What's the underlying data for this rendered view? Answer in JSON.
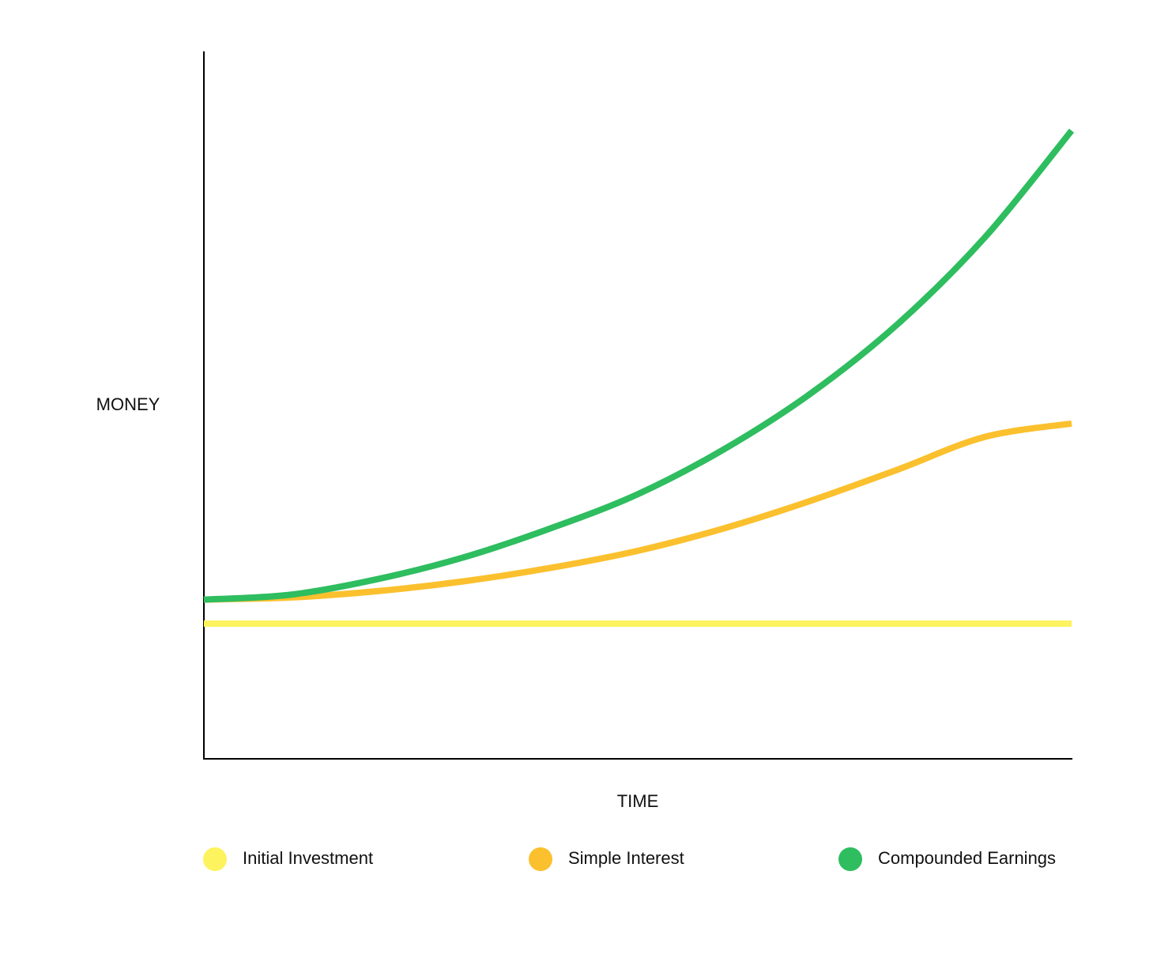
{
  "chart_data": {
    "type": "line",
    "x_label": "TIME",
    "y_label": "MONEY",
    "x": [
      0,
      1,
      2,
      3,
      4,
      5,
      6,
      7,
      8,
      9,
      10
    ],
    "xlim": [
      0,
      10
    ],
    "ylim": [
      0,
      100
    ],
    "series": [
      {
        "name": "Initial Investment",
        "color": "#fdf35e",
        "values": [
          19.1,
          19.1,
          19.1,
          19.1,
          19.1,
          19.1,
          19.1,
          19.1,
          19.1,
          19.1,
          19.1
        ]
      },
      {
        "name": "Simple Interest",
        "color": "#fbc02d",
        "values": [
          22.5,
          22.8,
          23.7,
          25.1,
          27.0,
          29.4,
          32.6,
          36.5,
          40.9,
          45.5,
          47.4
        ]
      },
      {
        "name": "Compounded Earnings",
        "color": "#2ebd5f",
        "values": [
          22.5,
          23.2,
          25.4,
          28.5,
          32.6,
          37.4,
          43.8,
          51.7,
          61.5,
          73.7,
          88.8
        ]
      }
    ],
    "legend": "bottom"
  }
}
